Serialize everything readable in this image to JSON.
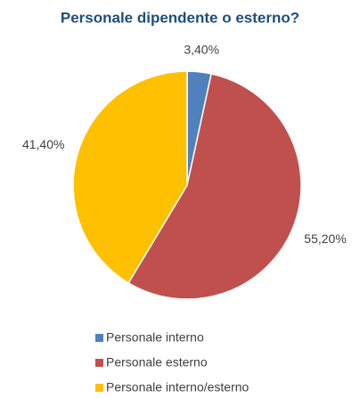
{
  "chart_data": {
    "type": "pie",
    "title": "Personale dipendente o esterno?",
    "categories": [
      "Personale interno",
      "Personale esterno",
      "Personale interno/esterno"
    ],
    "values": [
      3.4,
      55.2,
      41.4
    ],
    "value_labels": [
      "3,40%",
      "55,20%",
      "41,40%"
    ],
    "colors": [
      "#4f81bd",
      "#c0504d",
      "#ffc000"
    ],
    "legend": "bottom"
  }
}
